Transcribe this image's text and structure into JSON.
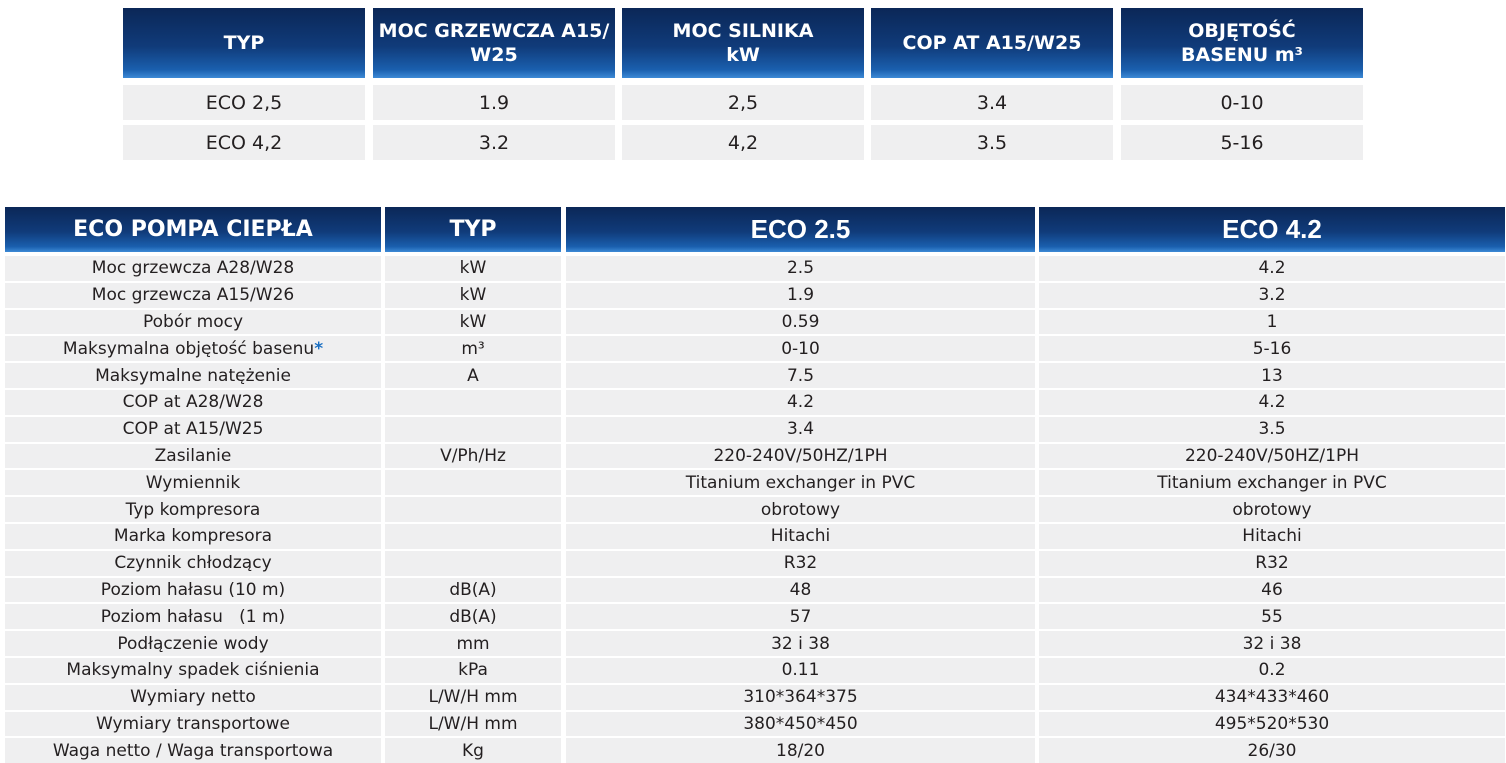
{
  "summary_table": {
    "headers": [
      [
        "TYP"
      ],
      [
        "MOC GRZEWCZA A15/",
        "W25"
      ],
      [
        "MOC SILNIKA",
        "kW"
      ],
      [
        "COP AT A15/W25"
      ],
      [
        "OBJĘTOŚĆ",
        "BASENU m³"
      ]
    ],
    "rows": [
      [
        "ECO 2,5",
        "1.9",
        "2,5",
        "3.4",
        "0-10"
      ],
      [
        "ECO 4,2",
        "3.2",
        "4,2",
        "3.5",
        "5-16"
      ]
    ]
  },
  "spec_table": {
    "headers": [
      "ECO POMPA CIEPŁA",
      "TYP",
      "ECO 2.5",
      "ECO 4.2"
    ],
    "rows": [
      {
        "label": "Moc grzewcza A28/W28",
        "unit": "kW",
        "values": [
          "2.5",
          "4.2"
        ]
      },
      {
        "label": "Moc grzewcza A15/W26",
        "unit": "kW",
        "values": [
          "1.9",
          "3.2"
        ]
      },
      {
        "label": "Pobór mocy",
        "unit": "kW",
        "values": [
          "0.59",
          "1"
        ]
      },
      {
        "label": "Maksymalna objętość basenu",
        "note": "*",
        "unit": "m³",
        "values": [
          "0-10",
          "5-16"
        ]
      },
      {
        "label": "Maksymalne natężenie",
        "unit": "A",
        "values": [
          "7.5",
          "13"
        ]
      },
      {
        "label": "COP at A28/W28",
        "values": [
          "4.2",
          "4.2"
        ]
      },
      {
        "label": "COP at A15/W25",
        "values": [
          "3.4",
          "3.5"
        ]
      },
      {
        "label": "Zasilanie",
        "unit": "V/Ph/Hz",
        "values": [
          "220-240V/50HZ/1PH",
          "220-240V/50HZ/1PH"
        ]
      },
      {
        "label": "Wymiennik",
        "values": [
          "Titanium exchanger in PVC",
          "Titanium exchanger in PVC"
        ]
      },
      {
        "label": "Typ kompresora",
        "values": [
          "obrotowy",
          "obrotowy"
        ]
      },
      {
        "label": "Marka kompresora",
        "values": [
          "Hitachi",
          "Hitachi"
        ]
      },
      {
        "label": "Czynnik chłodzący",
        "values": [
          "R32",
          "R32"
        ]
      },
      {
        "label": "Poziom hałasu (10 m)",
        "unit": "dB(A)",
        "values": [
          "48",
          "46"
        ]
      },
      {
        "label": "Poziom hałasu   (1 m)",
        "unit": "dB(A)",
        "values": [
          "57",
          "55"
        ]
      },
      {
        "label": "Podłączenie wody",
        "unit": "mm",
        "values": [
          "32 i 38",
          "32 i 38"
        ]
      },
      {
        "label": "Maksymalny spadek ciśnienia",
        "unit": "kPa",
        "values": [
          "0.11",
          "0.2"
        ]
      },
      {
        "label": "Wymiary netto",
        "unit": "L/W/H mm",
        "values": [
          "310*364*375",
          "434*433*460"
        ]
      },
      {
        "label": "Wymiary transportowe",
        "unit": "L/W/H mm",
        "values": [
          "380*450*450",
          "495*520*530"
        ]
      },
      {
        "label": "Waga netto / Waga transportowa",
        "unit": "Kg",
        "values": [
          "18/20",
          "26/30"
        ]
      }
    ]
  }
}
